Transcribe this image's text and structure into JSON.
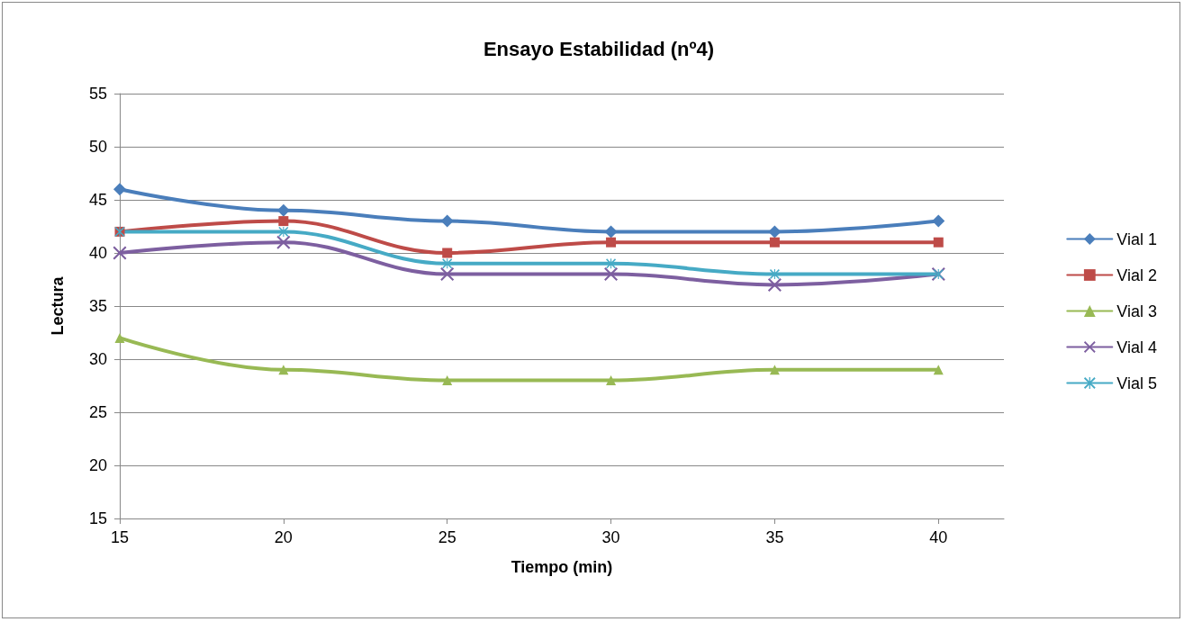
{
  "chart_data": {
    "type": "line",
    "title": "Ensayo Estabilidad (nº4)",
    "xlabel": "Tiempo (min)",
    "ylabel": "Lectura",
    "x": [
      15,
      20,
      25,
      30,
      35,
      40
    ],
    "xlim": [
      15,
      42
    ],
    "xticks": [
      15,
      20,
      25,
      30,
      35,
      40
    ],
    "ylim": [
      15,
      55
    ],
    "yticks": [
      15,
      20,
      25,
      30,
      35,
      40,
      45,
      50,
      55
    ],
    "grid": "y",
    "legend": "right",
    "line_style": "solid",
    "series": [
      {
        "name": "Vial 1",
        "color": "#4a7ebb",
        "marker": "diamond",
        "values": [
          46,
          44,
          43,
          42,
          42,
          43
        ]
      },
      {
        "name": "Vial 2",
        "color": "#be4b48",
        "marker": "square",
        "values": [
          42,
          43,
          40,
          41,
          41,
          41
        ]
      },
      {
        "name": "Vial 3",
        "color": "#98b954",
        "marker": "triangle",
        "values": [
          32,
          29,
          28,
          28,
          29,
          29
        ]
      },
      {
        "name": "Vial 4",
        "color": "#7d5fa0",
        "marker": "cross",
        "values": [
          40,
          41,
          38,
          38,
          37,
          38
        ]
      },
      {
        "name": "Vial 5",
        "color": "#46aac5",
        "marker": "star",
        "values": [
          42,
          42,
          39,
          39,
          38,
          38
        ]
      }
    ]
  }
}
